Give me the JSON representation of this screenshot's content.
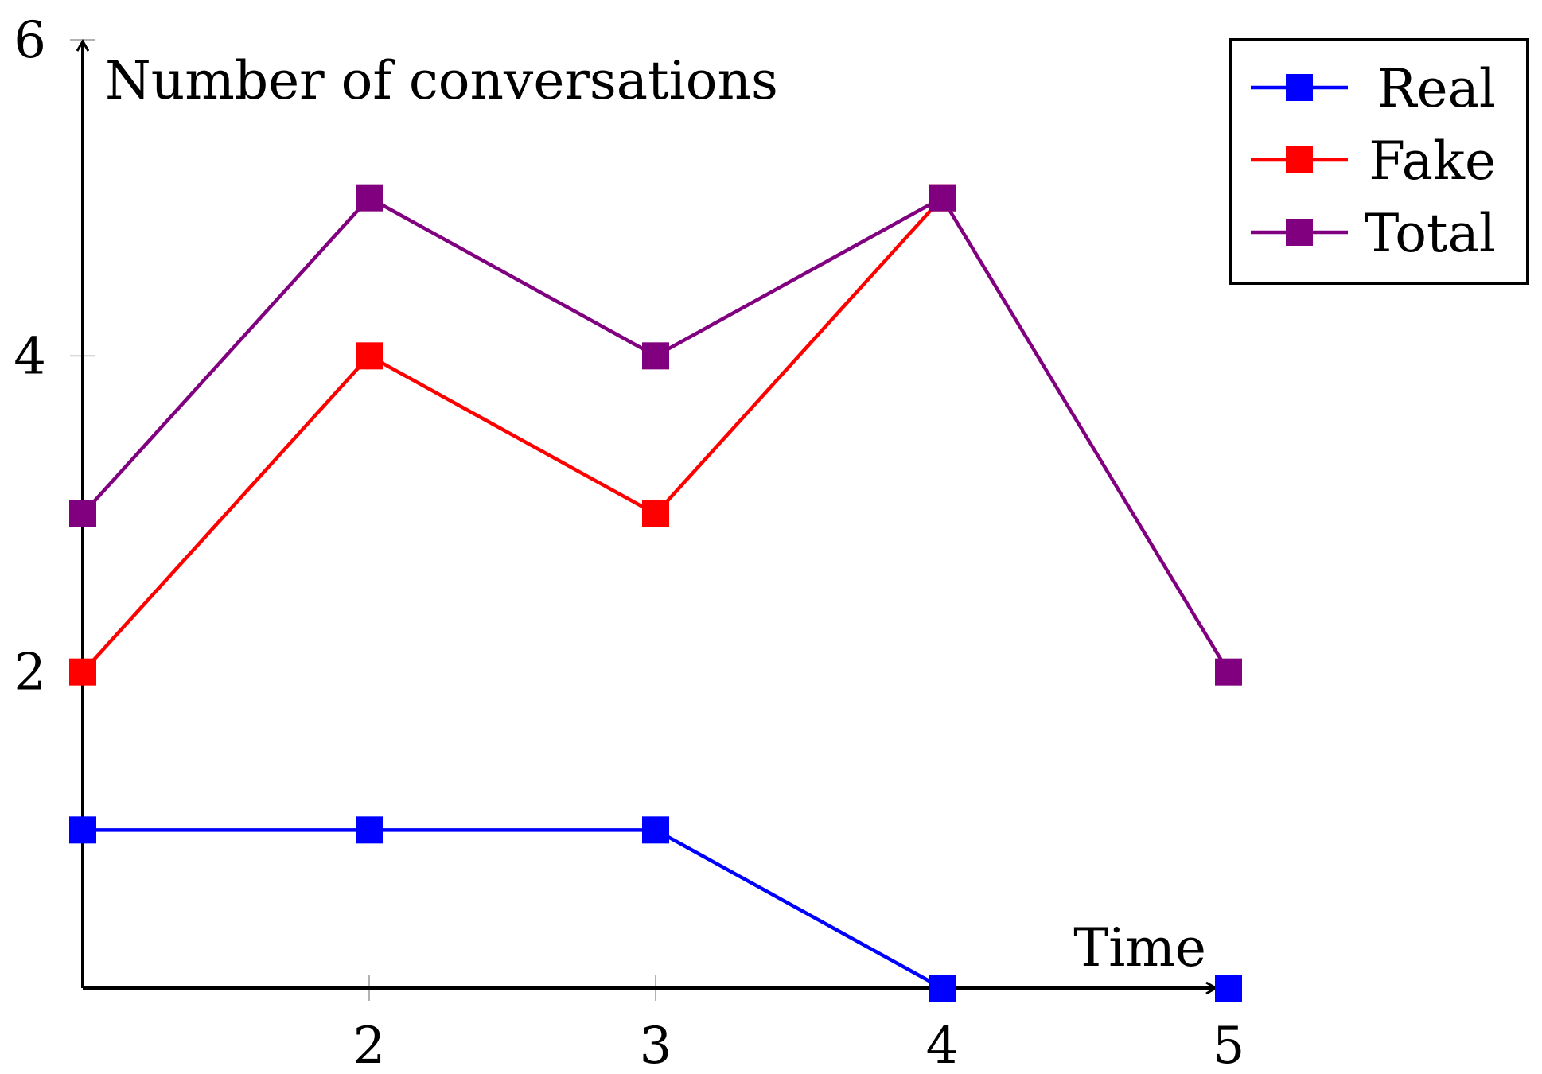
{
  "chart_data": {
    "type": "line",
    "title": "",
    "xlabel": "Time",
    "ylabel": "Number of conversations",
    "x": [
      1,
      2,
      3,
      4,
      5
    ],
    "xticks": [
      2,
      3,
      4,
      5
    ],
    "yticks": [
      2,
      4,
      6
    ],
    "xlim": [
      1,
      5
    ],
    "ylim": [
      0,
      6
    ],
    "legend_position": "top-right",
    "series": [
      {
        "name": "Real",
        "color": "#0000ff",
        "values": [
          1,
          1,
          1,
          0,
          0
        ]
      },
      {
        "name": "Fake",
        "color": "#ff0000",
        "values": [
          2,
          4,
          3,
          5,
          null
        ]
      },
      {
        "name": "Total",
        "color": "#800080",
        "values": [
          3,
          5,
          4,
          5,
          2
        ]
      }
    ]
  }
}
